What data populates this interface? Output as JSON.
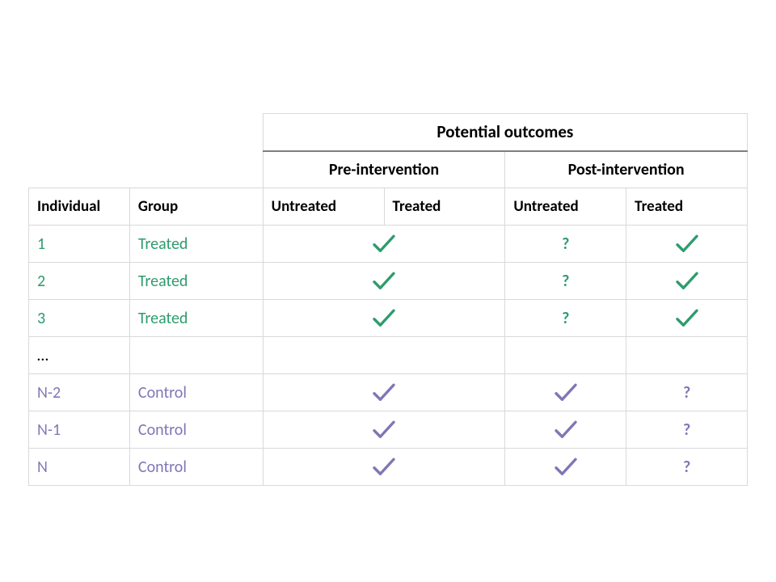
{
  "table": {
    "header": {
      "outcomes": "Potential outcomes",
      "pre": "Pre-intervention",
      "post": "Post-intervention",
      "individual": "Individual",
      "group": "Group",
      "untreated": "Untreated",
      "treated": "Treated"
    },
    "rows": [
      {
        "id": "1",
        "group": "Treated",
        "color_class": "green",
        "pre": "check",
        "post_untreated": "q",
        "post_treated": "check"
      },
      {
        "id": "2",
        "group": "Treated",
        "color_class": "green",
        "pre": "check",
        "post_untreated": "q",
        "post_treated": "check"
      },
      {
        "id": "3",
        "group": "Treated",
        "color_class": "green",
        "pre": "check",
        "post_untreated": "q",
        "post_treated": "check"
      },
      {
        "id": "…",
        "group": "",
        "color_class": "",
        "pre": "",
        "post_untreated": "",
        "post_treated": ""
      },
      {
        "id": "N-2",
        "group": "Control",
        "color_class": "purple",
        "pre": "check",
        "post_untreated": "check",
        "post_treated": "q"
      },
      {
        "id": "N-1",
        "group": "Control",
        "color_class": "purple",
        "pre": "check",
        "post_untreated": "check",
        "post_treated": "q"
      },
      {
        "id": "N",
        "group": "Control",
        "color_class": "purple",
        "pre": "check",
        "post_untreated": "check",
        "post_treated": "q"
      }
    ],
    "colors": {
      "green": "#2e9c6e",
      "purple": "#8076b5",
      "border": "#d9d9d9",
      "period_divider": "#7f7f7f"
    },
    "question_mark": "?"
  }
}
